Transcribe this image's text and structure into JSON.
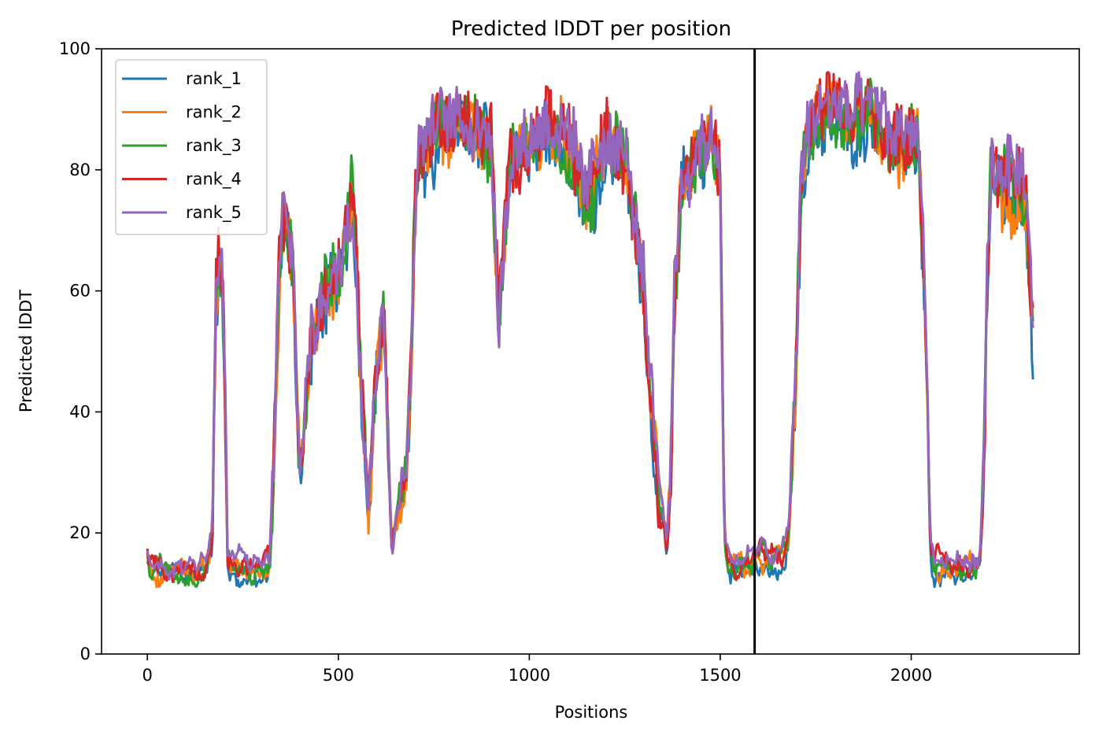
{
  "chart_data": {
    "type": "line",
    "title": "Predicted lDDT per position",
    "xlabel": "Positions",
    "ylabel": "Predicted lDDT",
    "xlim": [
      -120,
      2440
    ],
    "ylim": [
      0,
      100
    ],
    "xticks": [
      0,
      500,
      1000,
      1500,
      2000
    ],
    "yticks": [
      0,
      20,
      40,
      60,
      80,
      100
    ],
    "grid": false,
    "legend_position": "top-left",
    "vline_x": 1590,
    "vline_color": "#000000",
    "series": [
      {
        "name": "rank_1",
        "color": "#1f77b4"
      },
      {
        "name": "rank_2",
        "color": "#ff7f0e"
      },
      {
        "name": "rank_3",
        "color": "#2ca02c"
      },
      {
        "name": "rank_4",
        "color": "#d62728"
      },
      {
        "name": "rank_5",
        "color": "#9467bd"
      }
    ],
    "profile": {
      "x": [
        0,
        10,
        50,
        100,
        150,
        170,
        180,
        190,
        200,
        210,
        220,
        300,
        320,
        330,
        345,
        355,
        370,
        380,
        390,
        400,
        410,
        420,
        430,
        450,
        470,
        500,
        520,
        535,
        545,
        560,
        580,
        600,
        620,
        640,
        660,
        680,
        690,
        700,
        710,
        750,
        800,
        850,
        900,
        920,
        950,
        1000,
        1050,
        1100,
        1150,
        1200,
        1250,
        1280,
        1300,
        1320,
        1340,
        1360,
        1370,
        1380,
        1400,
        1420,
        1440,
        1480,
        1500,
        1510,
        1520,
        1590,
        1600,
        1620,
        1650,
        1670,
        1680,
        1700,
        1710,
        1720,
        1730,
        1750,
        1800,
        1850,
        1900,
        1950,
        2000,
        2020,
        2040,
        2050,
        2060,
        2080,
        2150,
        2180,
        2190,
        2200,
        2210,
        2250,
        2300,
        2320
      ],
      "y": [
        16,
        14,
        14,
        14,
        15,
        20,
        60,
        65,
        55,
        16,
        14,
        14,
        15,
        30,
        62,
        72,
        68,
        65,
        45,
        30,
        38,
        45,
        52,
        55,
        60,
        63,
        70,
        75,
        70,
        45,
        24,
        50,
        55,
        17,
        25,
        32,
        48,
        72,
        82,
        86,
        88,
        87,
        85,
        55,
        82,
        84,
        88,
        84,
        75,
        85,
        82,
        70,
        60,
        40,
        25,
        17,
        30,
        60,
        78,
        80,
        82,
        85,
        80,
        20,
        15,
        15,
        16,
        15,
        15,
        16,
        20,
        50,
        75,
        82,
        86,
        88,
        90,
        88,
        90,
        84,
        86,
        85,
        50,
        20,
        15,
        14,
        14,
        15,
        30,
        65,
        80,
        78,
        75,
        50
      ]
    }
  }
}
